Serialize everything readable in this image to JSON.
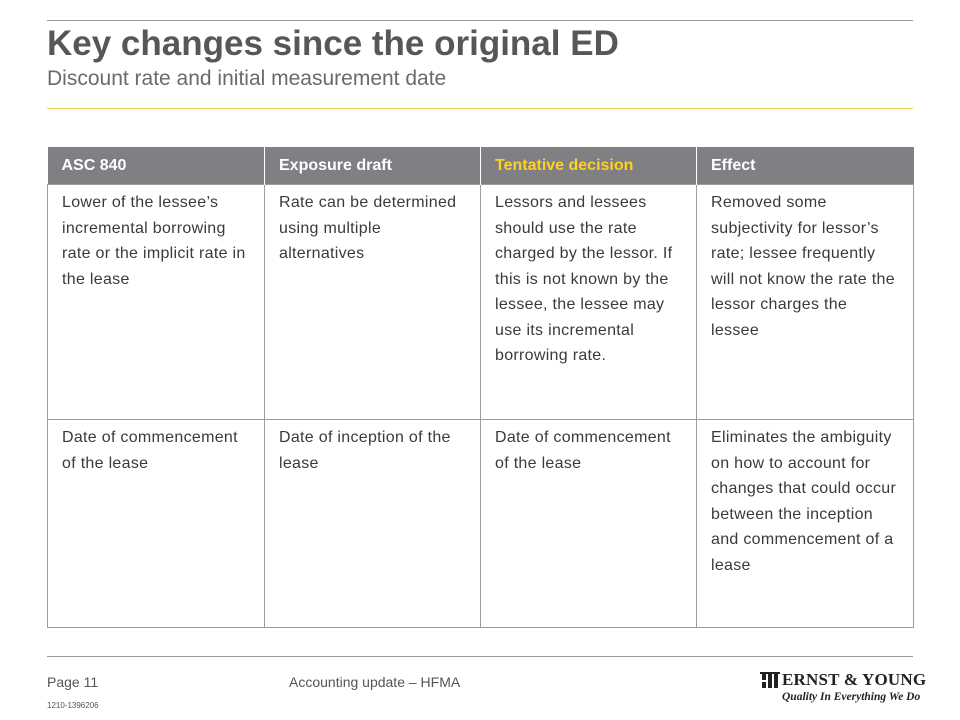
{
  "header": {
    "title": "Key changes since the original ED",
    "subtitle": "Discount rate and initial measurement date"
  },
  "table": {
    "columns": [
      "ASC 840",
      "Exposure draft",
      "Tentative decision",
      "Effect"
    ],
    "rows": [
      [
        "Lower of the lessee’s incremental borrowing rate or the implicit rate in the lease",
        "Rate can be determined using multiple alternatives",
        "Lessors and lessees should use the rate charged by the lessor. If this is not known by the lessee, the lessee may use its incremental borrowing rate.",
        "Removed some subjectivity for lessor’s rate; lessee frequently will not know the rate the lessor charges the lessee"
      ],
      [
        "Date of commencement of the lease",
        "Date of inception of the lease",
        "Date of commencement of the lease",
        "Eliminates the ambiguity on how to account for changes that could occur between the inception and commencement of a lease"
      ]
    ]
  },
  "footer": {
    "page": "Page 11",
    "doc_id": "1210-1396206",
    "title": "Accounting update – HFMA"
  },
  "logo": {
    "name": "Ernst & Young",
    "name_display": "ERNST & YOUNG",
    "tagline": "Quality In Everything We Do",
    "icon": "ernst-young-logo-mark"
  },
  "colors": {
    "header_bg": "#7f7f84",
    "highlight_header_text": "#ffd21f",
    "accent_rule": "#f0d060",
    "title_text": "#575757"
  }
}
